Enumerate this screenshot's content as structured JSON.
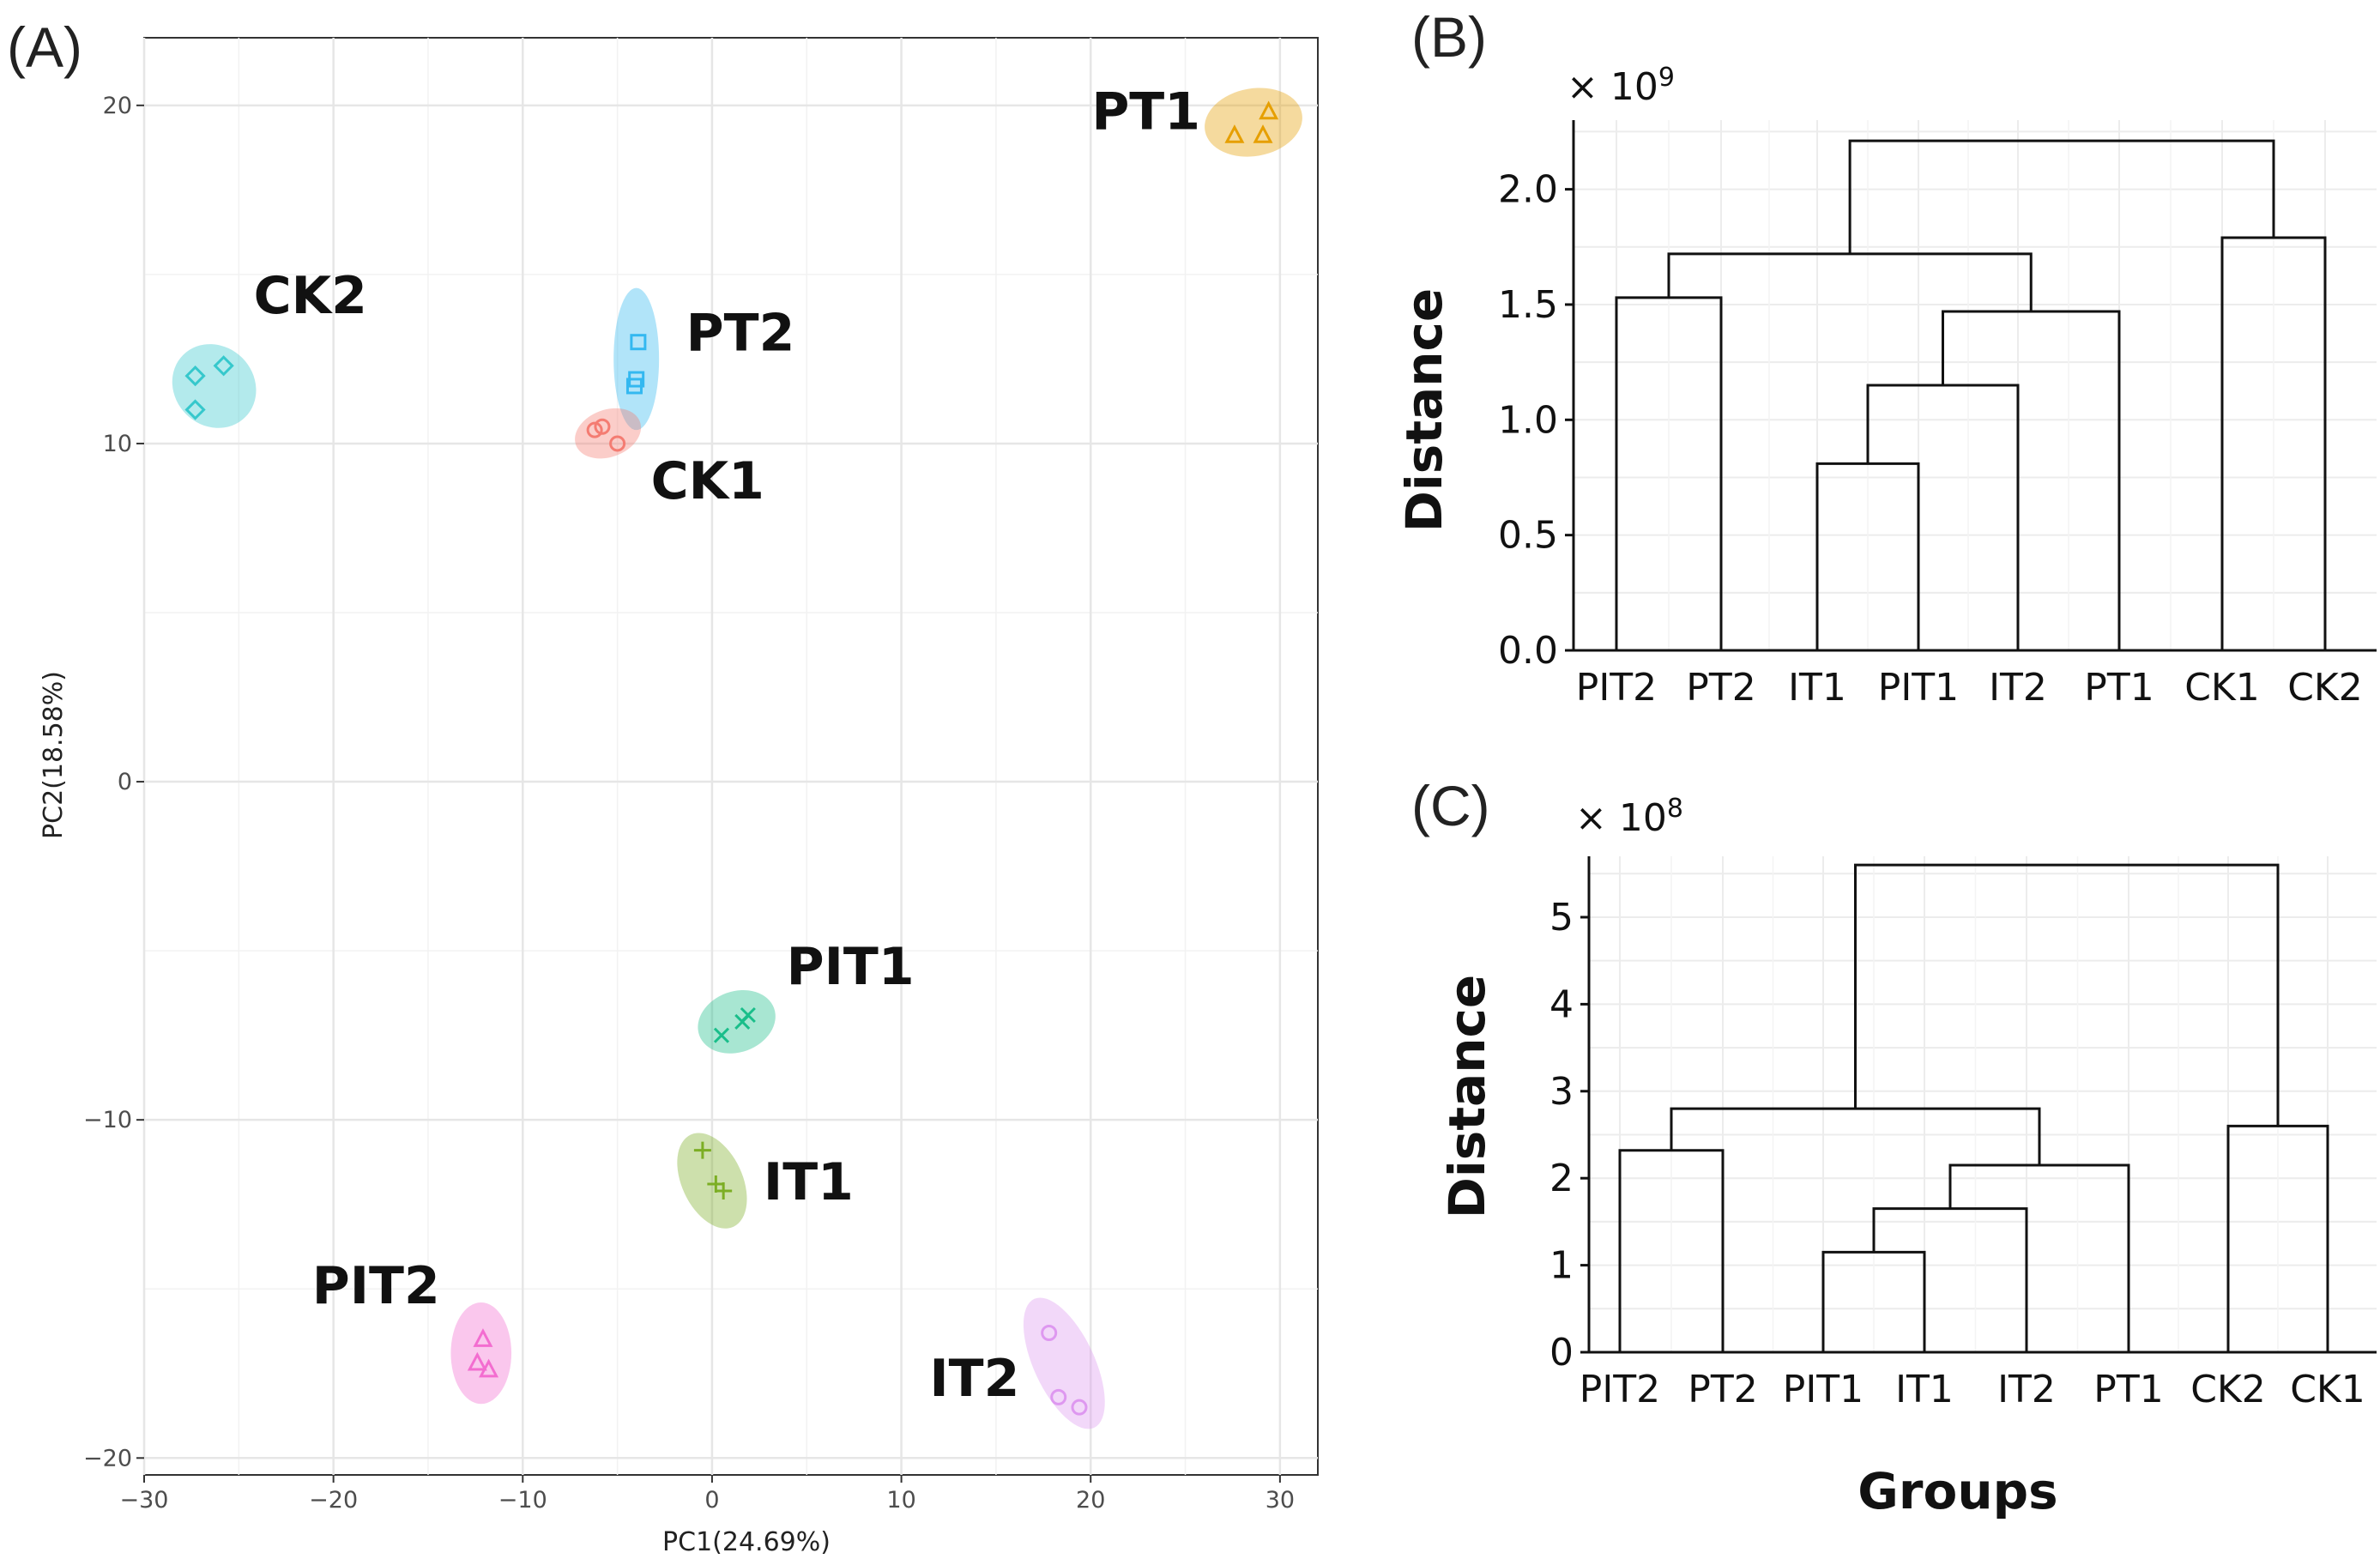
{
  "chart_data": [
    {
      "panel": "(A)",
      "type": "scatter",
      "title": "",
      "xlabel": "PC1(24.69%)",
      "ylabel": "PC2(18.58%)",
      "xlim": [
        -30,
        32
      ],
      "ylim": [
        -20.5,
        22
      ],
      "xticks": [
        -30,
        -20,
        -10,
        0,
        10,
        20,
        30
      ],
      "yticks": [
        -20,
        -10,
        0,
        10,
        20
      ],
      "grid": true,
      "groups": [
        {
          "name": "PT1",
          "color": "#E69F00",
          "marker": "triangle",
          "ellipse": {
            "cx": 28.6,
            "cy": 19.5,
            "rx": 2.6,
            "ry": 1.0,
            "angle": -10
          },
          "points": [
            [
              27.6,
              19.1
            ],
            [
              29.1,
              19.1
            ],
            [
              29.4,
              19.8
            ]
          ]
        },
        {
          "name": "CK2",
          "color": "#36C8CC",
          "marker": "diamond",
          "ellipse": {
            "cx": -26.3,
            "cy": 11.7,
            "rx": 2.1,
            "ry": 1.3,
            "angle": -45
          },
          "points": [
            [
              -27.3,
              12.0
            ],
            [
              -25.8,
              12.3
            ],
            [
              -27.3,
              11.0
            ]
          ]
        },
        {
          "name": "PT2",
          "color": "#33B8F0",
          "marker": "square",
          "ellipse": {
            "cx": -4.0,
            "cy": 12.5,
            "rx": 1.2,
            "ry": 2.1,
            "angle": 0
          },
          "points": [
            [
              -3.9,
              13.0
            ],
            [
              -4.0,
              11.9
            ],
            [
              -4.1,
              11.7
            ]
          ]
        },
        {
          "name": "CK1",
          "color": "#F47C72",
          "marker": "circle",
          "ellipse": {
            "cx": -5.5,
            "cy": 10.3,
            "rx": 1.8,
            "ry": 0.7,
            "angle": -20
          },
          "points": [
            [
              -6.2,
              10.4
            ],
            [
              -5.0,
              10.0
            ],
            [
              -5.8,
              10.5
            ]
          ]
        },
        {
          "name": "PIT1",
          "color": "#1ABE8A",
          "marker": "x",
          "ellipse": {
            "cx": 1.3,
            "cy": -7.1,
            "rx": 2.1,
            "ry": 0.9,
            "angle": -20
          },
          "points": [
            [
              0.5,
              -7.5
            ],
            [
              1.6,
              -7.1
            ],
            [
              1.9,
              -6.9
            ]
          ]
        },
        {
          "name": "IT1",
          "color": "#7CAE24",
          "marker": "plus",
          "ellipse": {
            "cx": 0.0,
            "cy": -11.8,
            "rx": 1.6,
            "ry": 1.5,
            "angle": -25
          },
          "points": [
            [
              -0.5,
              -10.9
            ],
            [
              0.2,
              -11.9
            ],
            [
              0.6,
              -12.1
            ]
          ]
        },
        {
          "name": "PIT2",
          "color": "#F36DD0",
          "marker": "triangle",
          "ellipse": {
            "cx": -12.2,
            "cy": -16.9,
            "rx": 1.6,
            "ry": 1.5,
            "angle": 0
          },
          "points": [
            [
              -12.1,
              -16.5
            ],
            [
              -12.4,
              -17.2
            ],
            [
              -11.8,
              -17.4
            ]
          ]
        },
        {
          "name": "IT2",
          "color": "#DE98F0",
          "marker": "circle",
          "ellipse": {
            "cx": 18.6,
            "cy": -17.2,
            "rx": 1.6,
            "ry": 2.1,
            "angle": -25
          },
          "points": [
            [
              17.8,
              -16.3
            ],
            [
              18.3,
              -18.2
            ],
            [
              19.4,
              -18.5
            ]
          ]
        }
      ]
    },
    {
      "panel": "(B)",
      "type": "dendrogram",
      "ylabel": "Distance",
      "multiplier": "× 10",
      "multiplier_exp": "9",
      "ylim": [
        0,
        2.3
      ],
      "yticks": [
        0.0,
        0.5,
        1.0,
        1.5,
        2.0
      ],
      "ytick_labels": [
        "0.0",
        "0.5",
        "1.0",
        "1.5",
        "2.0"
      ],
      "leaves": [
        "PIT2",
        "PT2",
        "IT1",
        "PIT1",
        "IT2",
        "PT1",
        "CK1",
        "CK2"
      ],
      "merges": [
        {
          "left": "IT1",
          "right": "PIT1",
          "height": 0.81
        },
        {
          "left": "IT1+PIT1",
          "right": "IT2",
          "height": 1.15
        },
        {
          "left": "IT1+PIT1+IT2",
          "right": "PT1",
          "height": 1.47
        },
        {
          "left": "PIT2",
          "right": "PT2",
          "height": 1.53
        },
        {
          "left": "PIT2+PT2",
          "right": "IT1+PIT1+IT2+PT1",
          "height": 1.72
        },
        {
          "left": "CK1",
          "right": "CK2",
          "height": 1.79
        },
        {
          "left": "PIT2..PT1",
          "right": "CK1+CK2",
          "height": 2.21
        }
      ]
    },
    {
      "panel": "(C)",
      "type": "dendrogram",
      "ylabel": "Distance",
      "xlabel": "Groups",
      "multiplier": "× 10",
      "multiplier_exp": "8",
      "ylim": [
        0,
        5.7
      ],
      "yticks": [
        0,
        1,
        2,
        3,
        4,
        5
      ],
      "ytick_labels": [
        "0",
        "1",
        "2",
        "3",
        "4",
        "5"
      ],
      "leaves": [
        "PIT2",
        "PT2",
        "PIT1",
        "IT1",
        "IT2",
        "PT1",
        "CK2",
        "CK1"
      ],
      "merges": [
        {
          "left": "PIT1",
          "right": "IT1",
          "height": 1.15
        },
        {
          "left": "PIT1+IT1",
          "right": "IT2",
          "height": 1.65
        },
        {
          "left": "PIT1+IT1+IT2",
          "right": "PT1",
          "height": 2.15
        },
        {
          "left": "PIT2",
          "right": "PT2",
          "height": 2.32
        },
        {
          "left": "CK2",
          "right": "CK1",
          "height": 2.6
        },
        {
          "left": "PIT2+PT2",
          "right": "PIT1+IT1+IT2+PT1",
          "height": 2.8
        },
        {
          "left": "PIT2..PT1",
          "right": "CK2+CK1",
          "height": 5.6
        }
      ]
    }
  ]
}
